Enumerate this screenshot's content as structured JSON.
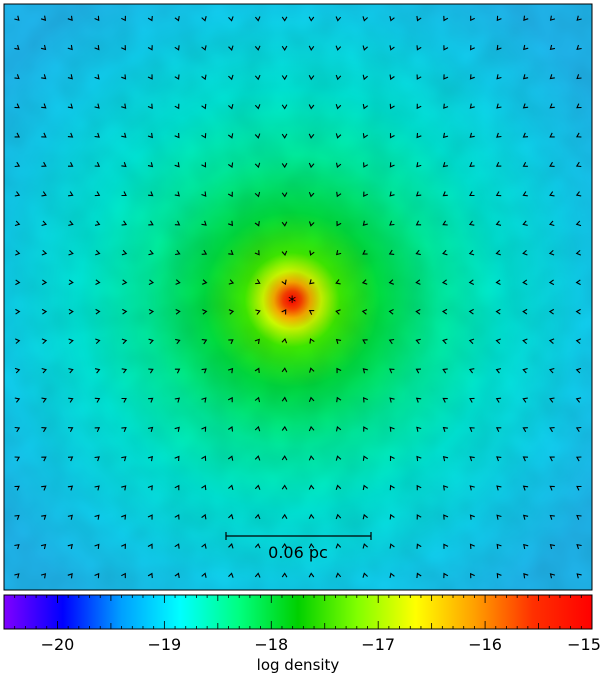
{
  "chart_data": {
    "type": "heatmap",
    "description_units": "log density",
    "colorbar": {
      "label": "log density",
      "range": [
        -20.5,
        -15
      ],
      "ticks": [
        -20,
        -19,
        -18,
        -17,
        -16,
        -15
      ],
      "tick_labels": [
        "−20",
        "−19",
        "−18",
        "−17",
        "−16",
        "−15"
      ],
      "colormap": [
        "#8000ff",
        "#0000ff",
        "#00a0ff",
        "#00ffff",
        "#00ff80",
        "#00d000",
        "#80ff00",
        "#ffff00",
        "#ffa000",
        "#ff3000",
        "#ff0000"
      ]
    },
    "field": {
      "background_log_density": -18.9,
      "peak_log_density": -15.3,
      "core_center_fraction": [
        0.49,
        0.505
      ],
      "vectors": "velocity arrows (chevrons) pointing toward central core",
      "grid": [
        22,
        20
      ]
    },
    "scale_bar": {
      "label": "0.06 pc",
      "length_pc": 0.06
    },
    "core_marker": "*"
  }
}
